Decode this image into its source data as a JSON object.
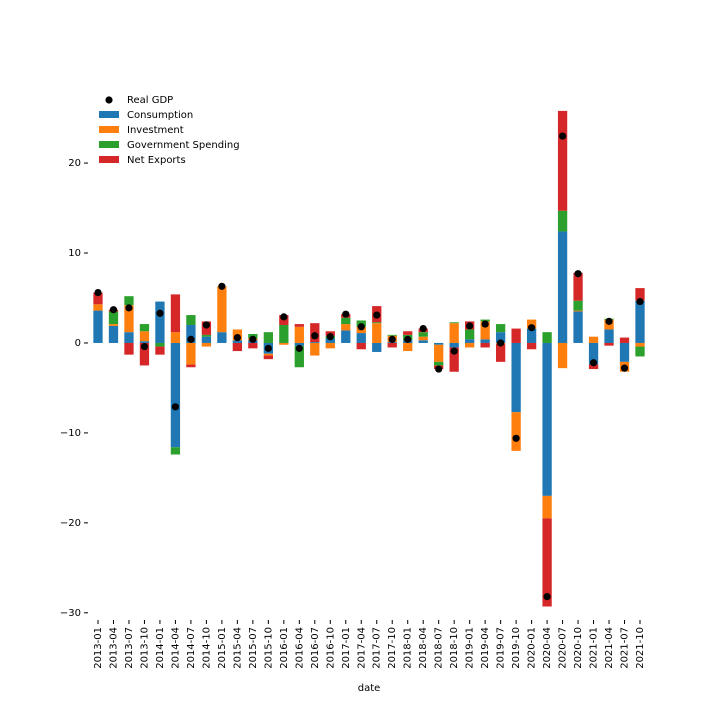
{
  "chart_data": {
    "type": "bar",
    "stacked": true,
    "xlabel": "date",
    "categories": [
      "2013-01",
      "2013-04",
      "2013-07",
      "2013-10",
      "2014-01",
      "2014-04",
      "2014-07",
      "2014-10",
      "2015-01",
      "2015-04",
      "2015-07",
      "2015-10",
      "2016-01",
      "2016-04",
      "2016-07",
      "2016-10",
      "2017-01",
      "2017-04",
      "2017-07",
      "2017-10",
      "2018-01",
      "2018-04",
      "2018-07",
      "2018-10",
      "2019-01",
      "2019-04",
      "2019-07",
      "2019-10",
      "2020-01",
      "2020-04",
      "2020-07",
      "2020-10",
      "2021-01",
      "2021-04",
      "2021-07",
      "2021-10"
    ],
    "series": [
      {
        "name": "Real GDP",
        "type": "scatter",
        "color": "#000000",
        "values": [
          5.6,
          3.7,
          3.9,
          -0.4,
          3.3,
          -7.1,
          0.4,
          2.0,
          6.3,
          0.6,
          0.4,
          -0.6,
          2.9,
          -0.6,
          0.8,
          0.7,
          3.2,
          1.8,
          3.1,
          0.4,
          0.4,
          1.6,
          -2.9,
          -0.9,
          1.9,
          2.1,
          0.0,
          -10.6,
          1.7,
          -28.2,
          23.0,
          7.7,
          -2.2,
          2.4,
          -2.8,
          4.6
        ]
      },
      {
        "name": "Consumption",
        "color": "#1f77b4",
        "values": [
          3.6,
          1.9,
          1.2,
          0.2,
          4.6,
          -11.6,
          2.0,
          0.7,
          1.2,
          0.3,
          0.3,
          -1.2,
          0,
          -0.3,
          0.1,
          0.5,
          1.4,
          1.1,
          -1.0,
          0.1,
          0.3,
          0.3,
          -0.2,
          -0.5,
          0.4,
          0.4,
          1.2,
          -7.7,
          1.6,
          -17.0,
          12.4,
          3.5,
          -2.4,
          1.5,
          -2.1,
          4.7
        ]
      },
      {
        "name": "Investment",
        "color": "#ff7f0e",
        "values": [
          0.7,
          0.2,
          3.0,
          1.1,
          0,
          1.2,
          -2.4,
          -0.4,
          5.1,
          1.2,
          0.2,
          -0.2,
          -0.2,
          1.8,
          -1.4,
          -0.6,
          0.7,
          0.7,
          2.2,
          0.7,
          -0.9,
          0.4,
          -1.9,
          2.2,
          -0.5,
          2.0,
          -0.1,
          -4.3,
          1.0,
          -2.5,
          -2.8,
          0.1,
          0.7,
          1.1,
          -1.1,
          -0.4
        ]
      },
      {
        "name": "Government Spending",
        "color": "#2ca02c",
        "values": [
          0,
          1.4,
          1.0,
          0.8,
          -0.4,
          -0.8,
          1.1,
          0.2,
          0,
          0,
          0.5,
          1.2,
          2.0,
          -2.4,
          0,
          0.3,
          0.7,
          0.7,
          0.1,
          0.1,
          0.6,
          0.5,
          -0.4,
          0.1,
          1.1,
          0.2,
          0.9,
          0,
          0,
          1.2,
          2.3,
          1.1,
          0,
          0.1,
          0,
          -1.1
        ]
      },
      {
        "name": "Net Exports",
        "color": "#d62728",
        "values": [
          1.3,
          0.2,
          -1.3,
          -2.5,
          -0.9,
          4.2,
          -0.3,
          1.5,
          0,
          -0.9,
          -0.6,
          -0.4,
          1.1,
          0.3,
          2.1,
          0.5,
          0.4,
          -0.7,
          1.8,
          -0.5,
          0.4,
          0.4,
          -0.4,
          -2.7,
          0.9,
          -0.5,
          -2.0,
          1.6,
          -0.7,
          -9.8,
          11.1,
          3.1,
          -0.5,
          -0.3,
          0.6,
          1.4
        ]
      }
    ],
    "ylim": [
      -30.8,
      25.9
    ],
    "yticks": [
      {
        "value": -30,
        "label": "−30"
      },
      {
        "value": -20,
        "label": "−20"
      },
      {
        "value": -10,
        "label": "−10"
      },
      0,
      10,
      20
    ],
    "legend": "upper left"
  }
}
